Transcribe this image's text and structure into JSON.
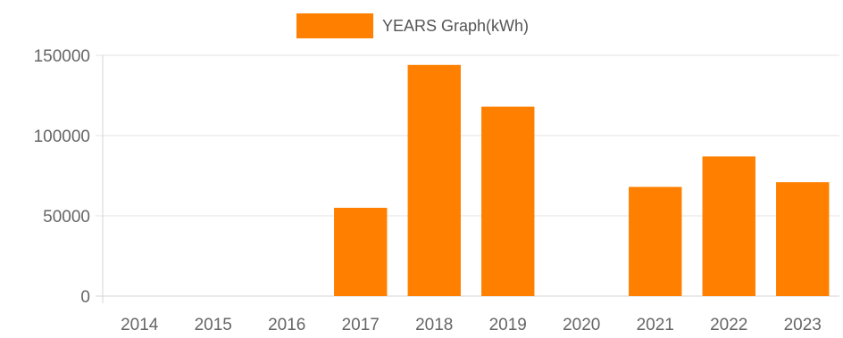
{
  "chart_data": {
    "type": "bar",
    "categories": [
      "2014",
      "2015",
      "2016",
      "2017",
      "2018",
      "2019",
      "2020",
      "2021",
      "2022",
      "2023"
    ],
    "series": [
      {
        "name": "YEARS Graph(kWh)",
        "values": [
          0,
          0,
          0,
          55000,
          144000,
          118000,
          0,
          68000,
          87000,
          71000
        ],
        "color": "#ff8000"
      }
    ],
    "yticks": [
      "0",
      "50000",
      "100000",
      "150000"
    ],
    "ylim": [
      0,
      150000
    ],
    "grid": true,
    "legend_position": "top-center"
  }
}
